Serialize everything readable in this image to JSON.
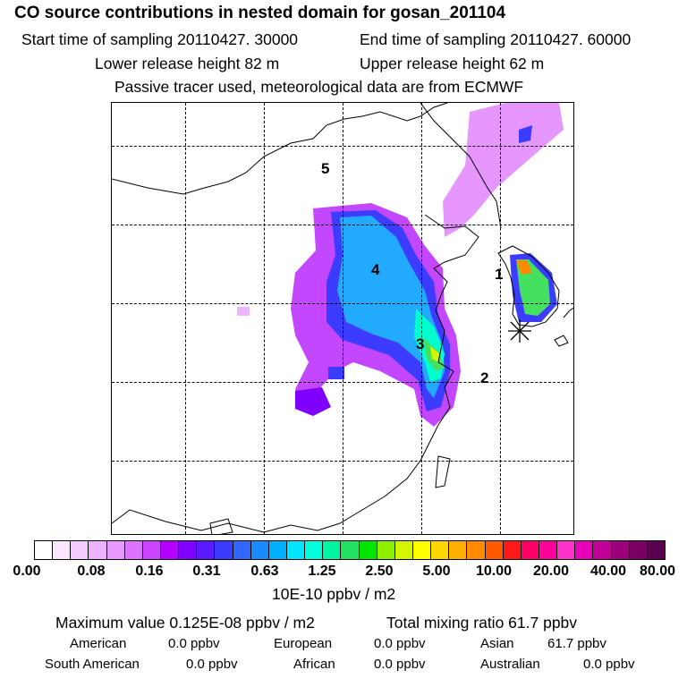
{
  "header": {
    "title": "CO  source contributions in nested domain for gosan_201104",
    "start_time": "Start time of sampling 20110427. 30000",
    "end_time": "End time of sampling 20110427. 60000",
    "lower_release": "Lower release height   82 m",
    "upper_release": "Upper release height   62 m",
    "tracer_note": "Passive tracer used, meteorological data are from ECMWF"
  },
  "map": {
    "region_labels": [
      "1",
      "2",
      "3",
      "4",
      "5"
    ],
    "receptor_marker": "asterisk-receptor"
  },
  "colorbar": {
    "colors": [
      "#ffffff",
      "#fbe6ff",
      "#f5ccff",
      "#eeb3ff",
      "#e699ff",
      "#dd73ff",
      "#cc44ff",
      "#b300ff",
      "#7f00ff",
      "#5a19ff",
      "#3c3cff",
      "#3366ff",
      "#1a8cff",
      "#00b0ff",
      "#00e5ff",
      "#00ffdd",
      "#00f5a0",
      "#22e060",
      "#00e600",
      "#8cf000",
      "#d4f500",
      "#ffff00",
      "#ffd700",
      "#ffb000",
      "#ff8a00",
      "#ff5a00",
      "#ff1a1a",
      "#ff0066",
      "#ff0099",
      "#ff33cc",
      "#e600b8",
      "#c00099",
      "#99007a",
      "#7a0066",
      "#590050"
    ],
    "tick_labels": [
      "0.00",
      "0.08",
      "0.16",
      "0.31",
      "0.63",
      "1.25",
      "2.50",
      "5.00",
      "10.00",
      "20.00",
      "40.00",
      "80.00"
    ],
    "unit": "10E-10 ppbv / m2"
  },
  "stats": {
    "max_value": "Maximum value  0.125E-08 ppbv / m2",
    "total_mixing": "Total mixing ratio       61.7 ppbv",
    "american_label": "American",
    "american_value": "0.0 ppbv",
    "european_label": "European",
    "european_value": "0.0 ppbv",
    "asian_label": "Asian",
    "asian_value": "61.7 ppbv",
    "south_american_label": "South American",
    "south_american_value": "0.0 ppbv",
    "african_label": "African",
    "african_value": "0.0 ppbv",
    "australian_label": "Australian",
    "australian_value": "0.0 ppbv"
  }
}
